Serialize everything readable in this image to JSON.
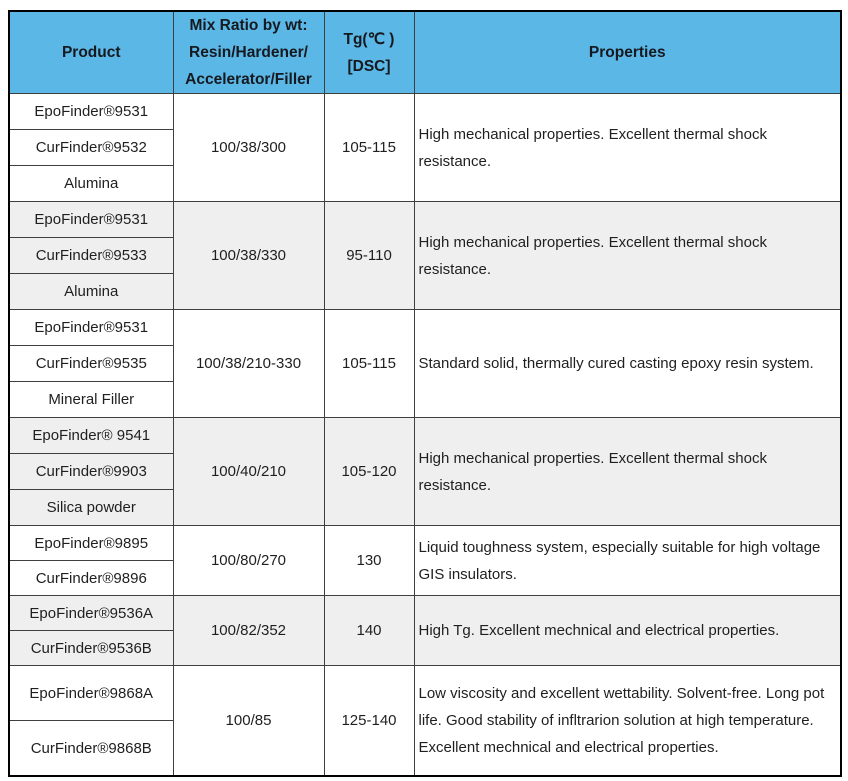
{
  "table": {
    "header": {
      "product": "Product",
      "mix_ratio_lines": [
        "Mix Ratio by wt:",
        "Resin/Hardener/",
        "Accelerator/Filler"
      ],
      "tg_lines": [
        "Tg(℃ )",
        "[DSC]"
      ],
      "properties": "Properties"
    },
    "groups": [
      {
        "products": [
          "EpoFinder®9531",
          "CurFinder®9532",
          "Alumina"
        ],
        "mix_ratio": "100/38/300",
        "tg": "105-115",
        "properties": "High mechanical properties. Excellent thermal shock resistance."
      },
      {
        "products": [
          "EpoFinder®9531",
          "CurFinder®9533",
          "Alumina"
        ],
        "mix_ratio": "100/38/330",
        "tg": "95-110",
        "properties": "High mechanical properties. Excellent thermal shock resistance."
      },
      {
        "products": [
          "EpoFinder®9531",
          "CurFinder®9535",
          "Mineral Filler"
        ],
        "mix_ratio": "100/38/210-330",
        "tg": "105-115",
        "properties": "Standard solid, thermally cured casting epoxy resin system."
      },
      {
        "products": [
          "EpoFinder® 9541",
          "CurFinder®9903",
          "Silica powder"
        ],
        "mix_ratio": "100/40/210",
        "tg": "105-120",
        "properties": "High mechanical properties. Excellent thermal shock resistance."
      },
      {
        "products": [
          "EpoFinder®9895",
          "CurFinder®9896"
        ],
        "mix_ratio": "100/80/270",
        "tg": "130",
        "properties": "Liquid toughness system, especially suitable for high voltage GIS insulators."
      },
      {
        "products": [
          "EpoFinder®9536A",
          "CurFinder®9536B"
        ],
        "mix_ratio": "100/82/352",
        "tg": "140",
        "properties": "High Tg. Excellent mechnical and electrical properties."
      },
      {
        "products": [
          "EpoFinder®9868A",
          "CurFinder®9868B"
        ],
        "mix_ratio": "100/85",
        "tg": "125-140",
        "properties": "Low viscosity and excellent wettability. Solvent-free. Long pot life. Good stability of infltrarion solution at high temperature. Excellent mechnical and electrical properties."
      }
    ],
    "colors": {
      "header_bg": "#5BB7E6",
      "header_text": "#16191f",
      "band_gray": "#EFEFEF",
      "band_white": "#FFFFFF",
      "grid_border": "#3f3f3f",
      "outer_border": "#000000"
    }
  }
}
